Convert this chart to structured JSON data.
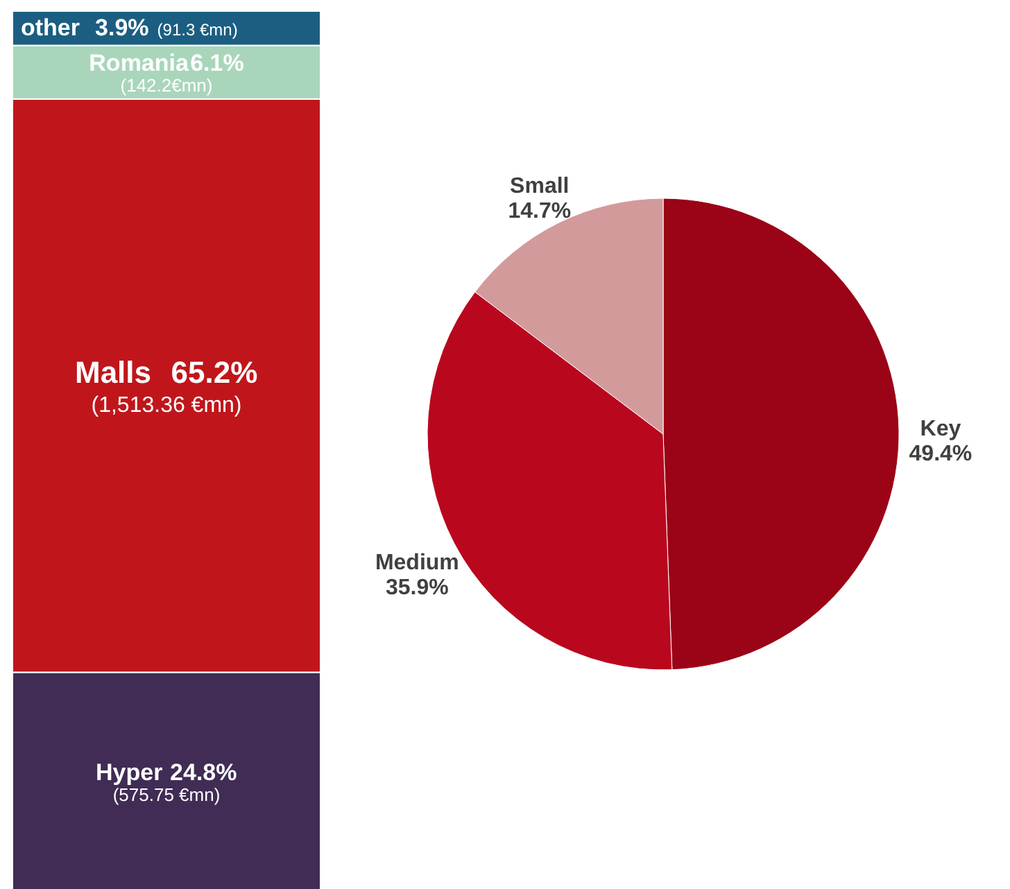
{
  "chart_data": [
    {
      "type": "bar",
      "stacked": true,
      "categories": [
        null
      ],
      "series": [
        {
          "name": "Hyper",
          "color": "#402c54",
          "values": [
            24.8
          ],
          "value_labels": [
            "24.8%"
          ]
        },
        {
          "name": "Malls",
          "color": "#c0161b",
          "values": [
            65.2
          ],
          "value_labels": [
            "65.2%"
          ]
        },
        {
          "name": "Romania",
          "color": "#a9d6bb",
          "values": [
            6.1
          ],
          "value_labels": [
            "6.1%"
          ]
        },
        {
          "name": "other",
          "color": "#1b5e82",
          "values": [
            3.9
          ],
          "value_labels": [
            "3.9%"
          ]
        }
      ],
      "annotations": [
        "(575.75 €mn)",
        "(1,513.36 €mn)",
        "(142.2€mn)",
        "(91.3 €mn)"
      ]
    },
    {
      "type": "pie",
      "categories": [
        "Key",
        "Medium",
        "Small"
      ],
      "values": [
        49.4,
        35.9,
        14.7
      ],
      "colors": [
        "#9b0316",
        "#b9071e",
        "#d39a9c"
      ],
      "value_labels": [
        "49.4%",
        "35.9%",
        "14.7%"
      ]
    }
  ]
}
